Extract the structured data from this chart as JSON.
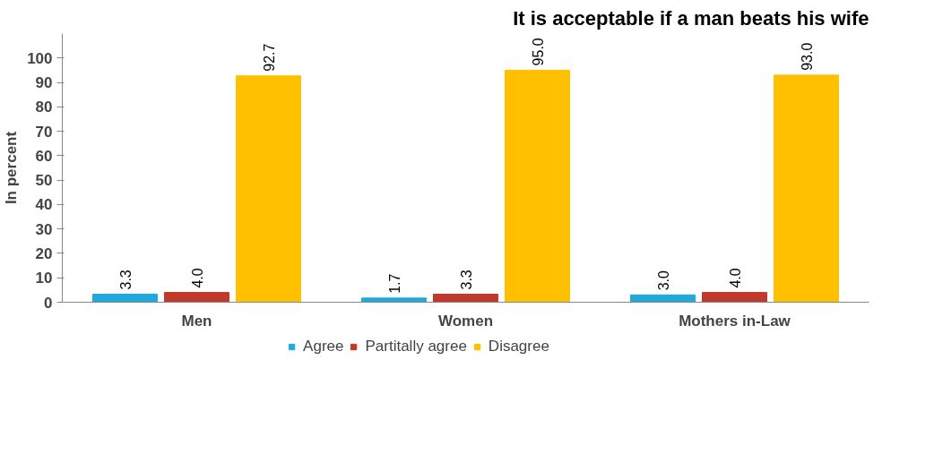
{
  "chart_data": {
    "type": "bar",
    "title": "It is acceptable if a man beats his wife",
    "ylabel": "In percent",
    "categories": [
      "Men",
      "Women",
      "Mothers in-Law"
    ],
    "series": [
      {
        "name": "Agree",
        "color": "#1fa9dc",
        "values": [
          3.3,
          1.7,
          3.0
        ],
        "value_labels": [
          "3.3",
          "1.7",
          "3.0"
        ]
      },
      {
        "name": "Partitally agree",
        "color": "#c0392b",
        "values": [
          4.0,
          3.3,
          4.0
        ],
        "value_labels": [
          "4.0",
          "3.3",
          "4.0"
        ]
      },
      {
        "name": "Disagree",
        "color": "#ffc000",
        "values": [
          92.7,
          95.0,
          93.0
        ],
        "value_labels": [
          "92.7",
          "95.0",
          "93.0"
        ]
      }
    ],
    "ylim": [
      0,
      110
    ],
    "yticks": [
      0,
      10,
      20,
      30,
      40,
      50,
      60,
      70,
      80,
      90,
      100
    ],
    "grid": false,
    "legend": "bottom"
  }
}
